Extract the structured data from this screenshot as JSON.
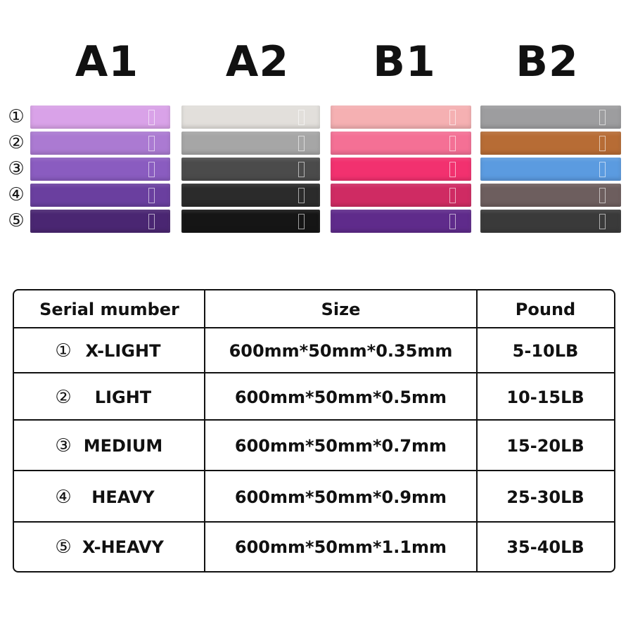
{
  "sets": [
    "A1",
    "A2",
    "B1",
    "B2"
  ],
  "band_markers": [
    "①",
    "②",
    "③",
    "④",
    "⑤"
  ],
  "table": {
    "header": [
      "Serial mumber",
      "Size",
      "Pound"
    ],
    "rows": [
      [
        "①",
        "X-LIGHT",
        "600mm*50mm*0.35mm",
        "5-10LB"
      ],
      [
        "②",
        "LIGHT",
        "600mm*50mm*0.5mm",
        "10-15LB"
      ],
      [
        "③",
        "MEDIUM",
        "600mm*50mm*0.7mm",
        "15-20LB"
      ],
      [
        "④",
        "HEAVY",
        "600mm*50mm*0.9mm",
        "25-30LB"
      ],
      [
        "⑤",
        "X-HEAVY",
        "600mm*50mm*1.1mm",
        "35-40LB"
      ]
    ]
  }
}
